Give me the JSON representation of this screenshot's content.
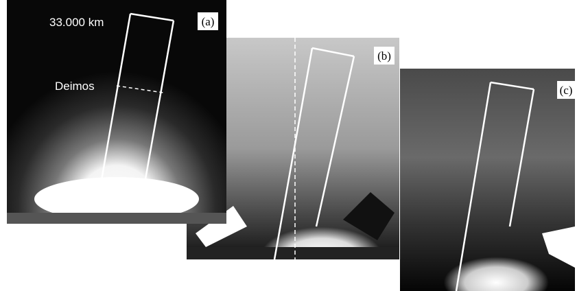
{
  "panels": [
    {
      "label": "(a)",
      "annotations": [
        "33.000 km",
        "Deimos"
      ]
    },
    {
      "label": "(b)"
    },
    {
      "label": "(c)"
    }
  ]
}
